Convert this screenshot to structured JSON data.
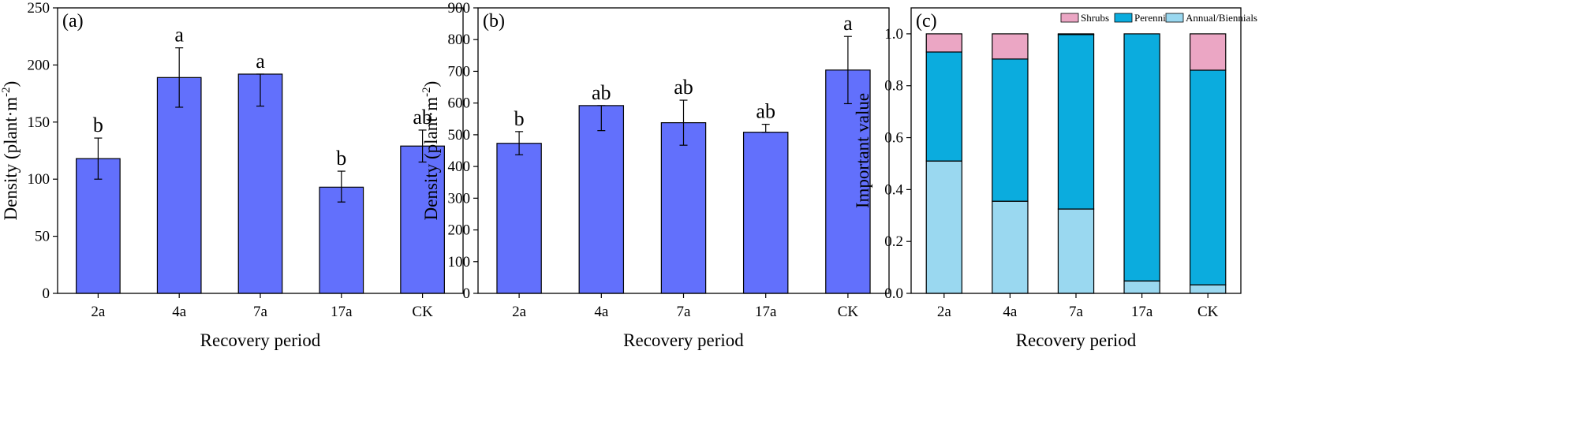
{
  "chart_data": [
    {
      "type": "bar",
      "panel_label": "(a)",
      "categories": [
        "2a",
        "4a",
        "7a",
        "17a",
        "CK"
      ],
      "values": [
        118,
        189,
        192,
        93,
        129
      ],
      "error_lower": [
        100,
        163,
        164,
        80,
        115
      ],
      "error_upper": [
        136,
        215,
        192,
        107,
        143
      ],
      "significance": [
        "b",
        "a",
        "a",
        "b",
        "ab"
      ],
      "xlabel": "Recovery period",
      "ylabel": "Density (plant·m",
      "ylabel_sup": "-2",
      "ylabel_suffix": ")",
      "ylim": [
        0,
        250
      ],
      "yticks": [
        "0",
        "50",
        "100",
        "150",
        "200",
        "250"
      ],
      "bar_color": "#6270fc"
    },
    {
      "type": "bar",
      "panel_label": "(b)",
      "categories": [
        "2a",
        "4a",
        "7a",
        "17a",
        "CK"
      ],
      "values": [
        473,
        592,
        538,
        508,
        704
      ],
      "error_lower": [
        437,
        513,
        467,
        508,
        598
      ],
      "error_upper": [
        510,
        592,
        609,
        533,
        810
      ],
      "significance": [
        "b",
        "ab",
        "ab",
        "ab",
        "a"
      ],
      "xlabel": "Recovery period",
      "ylabel": "Density (plant·m",
      "ylabel_sup": "-2",
      "ylabel_suffix": ")",
      "ylim": [
        0,
        900
      ],
      "yticks": [
        "0",
        "100",
        "200",
        "300",
        "400",
        "500",
        "600",
        "700",
        "800",
        "900"
      ],
      "bar_color": "#6270fc"
    },
    {
      "type": "bar",
      "stacked": true,
      "panel_label": "(c)",
      "categories": [
        "2a",
        "4a",
        "7a",
        "17a",
        "CK"
      ],
      "series": [
        {
          "name": "Annual/Biennials",
          "values": [
            0.51,
            0.355,
            0.325,
            0.048,
            0.033
          ],
          "color": "#9ad8f0"
        },
        {
          "name": "Perennials",
          "values": [
            0.42,
            0.548,
            0.672,
            0.952,
            0.827
          ],
          "color": "#0bacde"
        },
        {
          "name": "Shrubs",
          "values": [
            0.07,
            0.097,
            0.003,
            0.0,
            0.14
          ],
          "color": "#eba6c4"
        }
      ],
      "legend_order": [
        "Shrubs",
        "Perennials",
        "Annual/Biennials"
      ],
      "legend_position": "top-right",
      "xlabel": "Recovery period",
      "ylabel": "Important value",
      "ylim": [
        0,
        1.1
      ],
      "yticks": [
        "0.0",
        "0.2",
        "0.4",
        "0.6",
        "0.8",
        "1.0"
      ]
    }
  ]
}
